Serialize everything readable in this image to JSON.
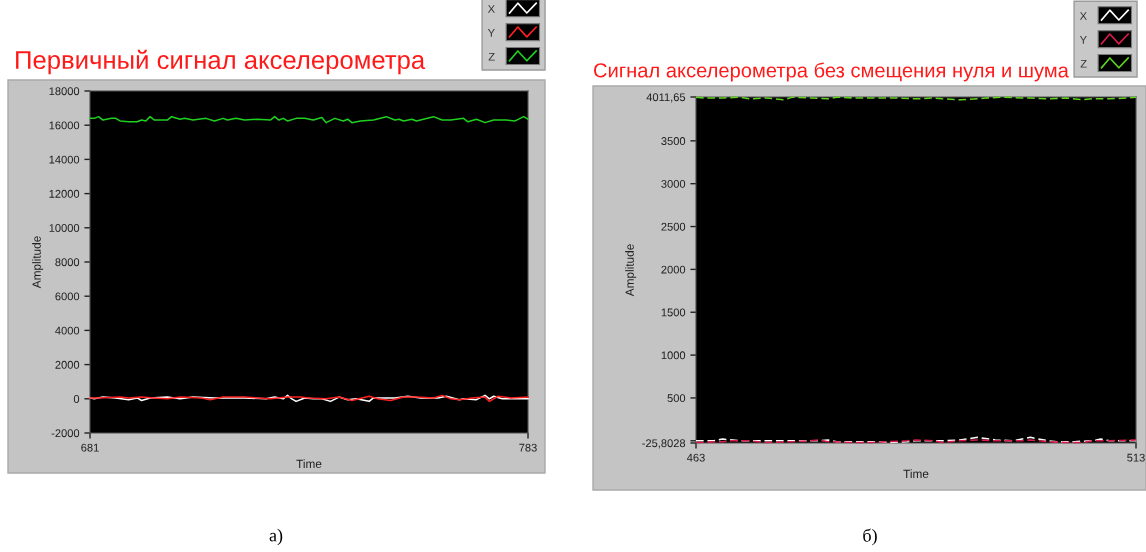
{
  "chart_data": [
    {
      "type": "line",
      "title": "Первичный сигнал акселерометра",
      "xlabel": "Time",
      "ylabel": "Amplitude",
      "xlim": [
        681,
        783
      ],
      "xticks": [
        681,
        783
      ],
      "ylim": [
        -2000,
        18000
      ],
      "yticks": [
        -2000,
        0,
        2000,
        4000,
        6000,
        8000,
        10000,
        12000,
        14000,
        16000,
        18000
      ],
      "legend": "top right",
      "line_style": "solid",
      "annotations": [
        "а)"
      ],
      "series": [
        {
          "name": "X",
          "color": "#ffffff",
          "x": [
            681,
            682,
            684,
            687,
            690,
            692,
            693,
            695,
            699,
            702,
            705,
            710,
            717,
            722,
            724,
            726,
            727,
            728,
            729,
            731,
            733,
            735,
            737,
            739,
            741,
            743,
            746,
            747,
            752,
            755,
            758,
            762,
            764,
            767,
            768,
            771,
            773,
            774,
            775,
            777,
            780,
            783
          ],
          "values": [
            50,
            0,
            100,
            50,
            -50,
            50,
            -100,
            50,
            100,
            0,
            100,
            50,
            50,
            0,
            100,
            0,
            200,
            0,
            -150,
            50,
            0,
            0,
            -150,
            100,
            -50,
            0,
            -150,
            50,
            50,
            150,
            50,
            50,
            150,
            -50,
            0,
            -50,
            200,
            0,
            150,
            0,
            0,
            0
          ]
        },
        {
          "name": "Y",
          "color": "#ff2020",
          "x": [
            681,
            683,
            688,
            690,
            693,
            696,
            699,
            702,
            707,
            709,
            712,
            717,
            720,
            723,
            727,
            730,
            732,
            736,
            739,
            742,
            746,
            748,
            751,
            754,
            757,
            761,
            763,
            765,
            767,
            770,
            773,
            774,
            776,
            779,
            783
          ],
          "values": [
            50,
            50,
            100,
            50,
            100,
            50,
            0,
            100,
            50,
            -50,
            100,
            100,
            50,
            0,
            100,
            100,
            50,
            0,
            100,
            -100,
            150,
            0,
            -100,
            100,
            100,
            50,
            200,
            0,
            -50,
            50,
            100,
            -150,
            150,
            50,
            100
          ]
        },
        {
          "name": "Z",
          "color": "#1fd11f",
          "x": [
            681,
            682,
            683,
            684,
            686,
            687,
            688,
            690,
            692,
            693,
            694,
            695,
            696,
            699,
            700,
            702,
            703,
            705,
            708,
            710,
            712,
            713,
            715,
            717,
            720,
            723,
            724,
            725,
            726,
            727,
            729,
            731,
            733,
            735,
            736,
            738,
            740,
            741,
            742,
            744,
            747,
            750,
            752,
            753,
            754,
            756,
            757,
            761,
            763,
            765,
            768,
            769,
            771,
            773,
            775,
            778,
            780,
            782,
            783
          ],
          "values": [
            16400,
            16400,
            16500,
            16300,
            16400,
            16400,
            16250,
            16200,
            16200,
            16300,
            16250,
            16500,
            16300,
            16300,
            16500,
            16350,
            16400,
            16300,
            16400,
            16250,
            16400,
            16300,
            16400,
            16300,
            16350,
            16300,
            16500,
            16300,
            16400,
            16250,
            16400,
            16400,
            16300,
            16450,
            16150,
            16400,
            16250,
            16350,
            16150,
            16250,
            16300,
            16500,
            16300,
            16350,
            16250,
            16350,
            16250,
            16500,
            16300,
            16300,
            16400,
            16200,
            16350,
            16150,
            16300,
            16300,
            16250,
            16500,
            16350
          ]
        }
      ]
    },
    {
      "type": "line",
      "title": "Сигнал акселерометра без смещения нуля и шума",
      "xlabel": "Time",
      "ylabel": "Amplitude",
      "xlim": [
        463,
        513
      ],
      "xticks": [
        463,
        513
      ],
      "ylim": [
        -25.8028,
        4011.65
      ],
      "yticks": [
        {
          "value": -25.8028,
          "label": "-25,8028"
        },
        {
          "value": 0,
          "label": null
        },
        500,
        1000,
        1500,
        2000,
        2500,
        3000,
        3500,
        {
          "value": 4011.65,
          "label": "4011,65"
        }
      ],
      "legend": "top right",
      "line_style": "dashed",
      "annotations": [
        "б)"
      ],
      "series": [
        {
          "name": "X",
          "color": "#ffffff",
          "x": [
            463,
            465,
            466,
            468,
            470,
            477,
            478,
            479,
            481,
            483,
            485,
            487,
            488,
            490,
            491,
            493,
            495,
            497,
            499,
            501,
            503,
            504,
            506,
            508,
            509,
            510,
            513
          ],
          "values": [
            0,
            0,
            20,
            0,
            0,
            0,
            10,
            -10,
            -10,
            -10,
            -20,
            -10,
            0,
            0,
            0,
            10,
            40,
            10,
            0,
            40,
            0,
            -10,
            -10,
            0,
            20,
            0,
            0
          ]
        },
        {
          "name": "Y",
          "color": "#d81b4a",
          "x": [
            463,
            466,
            467,
            469,
            471,
            474,
            476,
            477,
            478,
            481,
            483,
            485,
            487,
            488,
            490,
            491,
            493,
            495,
            497,
            500,
            501,
            503,
            505,
            507,
            508,
            510,
            513
          ],
          "values": [
            -20,
            -10,
            0,
            0,
            -20,
            -10,
            0,
            10,
            -10,
            -20,
            -20,
            -10,
            0,
            10,
            0,
            -20,
            0,
            10,
            0,
            0,
            10,
            -10,
            -20,
            -20,
            0,
            0,
            10
          ]
        },
        {
          "name": "Z",
          "color": "#5fd31f",
          "x": [
            463,
            464,
            466,
            468,
            469,
            471,
            473,
            474,
            476,
            478,
            479,
            481,
            483,
            485,
            486,
            488,
            490,
            491,
            493,
            495,
            496,
            498,
            500,
            501,
            503,
            505,
            507,
            508,
            510,
            512,
            513
          ],
          "values": [
            4010,
            4000,
            4000,
            4010,
            3990,
            4000,
            3980,
            4010,
            4000,
            3990,
            4010,
            4000,
            4000,
            4000,
            4000,
            3990,
            4000,
            3990,
            3980,
            3990,
            4000,
            4010,
            4000,
            4000,
            3990,
            4000,
            3980,
            3990,
            3990,
            4000,
            4010
          ]
        }
      ]
    }
  ]
}
